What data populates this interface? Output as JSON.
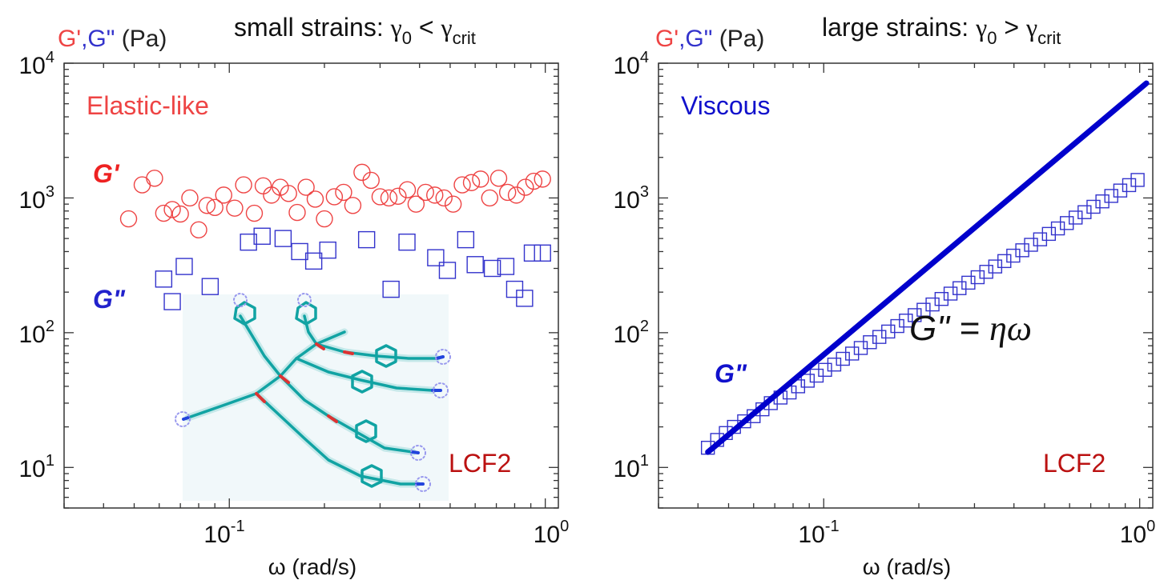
{
  "colors": {
    "gprime": "#ee4444",
    "gdoubleprime": "#3333cc",
    "fit_line": "#0000cc",
    "lcf2": "#bb1111",
    "axis": "#333333"
  },
  "chart_data": [
    {
      "type": "scatter",
      "title": "small strains: γ0 < γcrit",
      "title_parts": {
        "prefix": "small strains: ",
        "gamma": "γ",
        "sub0": "0",
        "op": " < ",
        "subcrit": "crit"
      },
      "ylabel_parts": {
        "gp": "G'",
        "comma": ",",
        "gpp": "G\"",
        "unit": " (Pa)"
      },
      "xlabel": "ω (rad/s)",
      "xscale": "log",
      "yscale": "log",
      "xlim": [
        0.03,
        1.1
      ],
      "ylim": [
        5,
        10000
      ],
      "x_ticks": [
        {
          "base": "10",
          "exp": "-1",
          "value": 0.1
        },
        {
          "base": "10",
          "exp": "0",
          "value": 1
        }
      ],
      "y_ticks": [
        {
          "base": "10",
          "exp": "1",
          "value": 10
        },
        {
          "base": "10",
          "exp": "2",
          "value": 100
        },
        {
          "base": "10",
          "exp": "3",
          "value": 1000
        },
        {
          "base": "10",
          "exp": "4",
          "value": 10000
        }
      ],
      "annotations": {
        "regime": "Elastic-like",
        "gp_label": "G'",
        "gpp_label": "G\"",
        "sample": "LCF2"
      },
      "series": [
        {
          "name": "G'",
          "marker": "circle",
          "x": [
            0.048,
            0.053,
            0.058,
            0.062,
            0.066,
            0.07,
            0.075,
            0.08,
            0.085,
            0.09,
            0.096,
            0.104,
            0.111,
            0.12,
            0.128,
            0.136,
            0.145,
            0.154,
            0.164,
            0.175,
            0.187,
            0.2,
            0.215,
            0.23,
            0.246,
            0.263,
            0.281,
            0.3,
            0.32,
            0.342,
            0.366,
            0.39,
            0.418,
            0.447,
            0.478,
            0.511,
            0.546,
            0.584,
            0.624,
            0.667,
            0.712,
            0.76,
            0.81,
            0.865,
            0.92,
            0.98
          ],
          "y": [
            700,
            1250,
            1400,
            770,
            820,
            760,
            1000,
            580,
            880,
            850,
            1050,
            840,
            1250,
            770,
            1230,
            1050,
            1200,
            1080,
            780,
            1200,
            980,
            700,
            1020,
            1100,
            880,
            1550,
            1350,
            1020,
            1000,
            1030,
            1150,
            900,
            1100,
            1050,
            1000,
            900,
            1250,
            1300,
            1380,
            1000,
            1400,
            1100,
            1050,
            1200,
            1330,
            1380
          ]
        },
        {
          "name": "G\"",
          "marker": "square",
          "x": [
            0.062,
            0.066,
            0.072,
            0.087,
            0.115,
            0.127,
            0.148,
            0.167,
            0.185,
            0.205,
            0.272,
            0.325,
            0.365,
            0.45,
            0.49,
            0.56,
            0.6,
            0.68,
            0.75,
            0.8,
            0.86,
            0.91,
            0.98
          ],
          "y": [
            250,
            170,
            310,
            220,
            470,
            520,
            500,
            400,
            340,
            410,
            490,
            210,
            470,
            360,
            290,
            490,
            320,
            300,
            310,
            210,
            180,
            390,
            390
          ]
        }
      ]
    },
    {
      "type": "scatter",
      "title": "large strains: γ0 > γcrit",
      "title_parts": {
        "prefix": "large strains: ",
        "gamma": "γ",
        "sub0": "0",
        "op": " > ",
        "subcrit": "crit"
      },
      "ylabel_parts": {
        "gp": "G'",
        "comma": ",",
        "gpp": "G\"",
        "unit": " (Pa)"
      },
      "xlabel": "ω (rad/s)",
      "xscale": "log",
      "yscale": "log",
      "xlim": [
        0.03,
        1.1
      ],
      "ylim": [
        5,
        10000
      ],
      "x_ticks": [
        {
          "base": "10",
          "exp": "-1",
          "value": 0.1
        },
        {
          "base": "10",
          "exp": "0",
          "value": 1
        }
      ],
      "y_ticks": [
        {
          "base": "10",
          "exp": "1",
          "value": 10
        },
        {
          "base": "10",
          "exp": "2",
          "value": 100
        },
        {
          "base": "10",
          "exp": "3",
          "value": 1000
        },
        {
          "base": "10",
          "exp": "4",
          "value": 10000
        }
      ],
      "annotations": {
        "regime": "Viscous",
        "gpp_label": "G\"",
        "equation_lhs": "G\" = ",
        "equation_rhs": "ηω",
        "sample": "LCF2"
      },
      "series": [
        {
          "name": "G\"",
          "marker": "square",
          "x": [
            0.043,
            0.046,
            0.049,
            0.052,
            0.056,
            0.06,
            0.064,
            0.068,
            0.073,
            0.078,
            0.083,
            0.089,
            0.095,
            0.101,
            0.108,
            0.115,
            0.123,
            0.131,
            0.14,
            0.15,
            0.16,
            0.171,
            0.182,
            0.194,
            0.207,
            0.221,
            0.236,
            0.252,
            0.269,
            0.287,
            0.307,
            0.327,
            0.349,
            0.373,
            0.398,
            0.425,
            0.453,
            0.484,
            0.516,
            0.551,
            0.588,
            0.627,
            0.669,
            0.714,
            0.762,
            0.813,
            0.868,
            0.926,
            0.985
          ],
          "y": [
            14,
            16,
            18,
            20,
            22,
            24,
            27,
            30,
            33,
            36,
            40,
            44,
            48,
            53,
            58,
            64,
            70,
            77,
            85,
            93,
            102,
            112,
            123,
            135,
            148,
            162,
            178,
            195,
            214,
            235,
            258,
            283,
            310,
            340,
            373,
            409,
            449,
            493,
            541,
            594,
            651,
            715,
            784,
            860,
            943,
            1035,
            1135,
            1245,
            1360
          ]
        },
        {
          "name": "η ω fit",
          "type": "line",
          "x": [
            0.043,
            1.05
          ],
          "y": [
            13,
            7100
          ]
        }
      ]
    }
  ]
}
